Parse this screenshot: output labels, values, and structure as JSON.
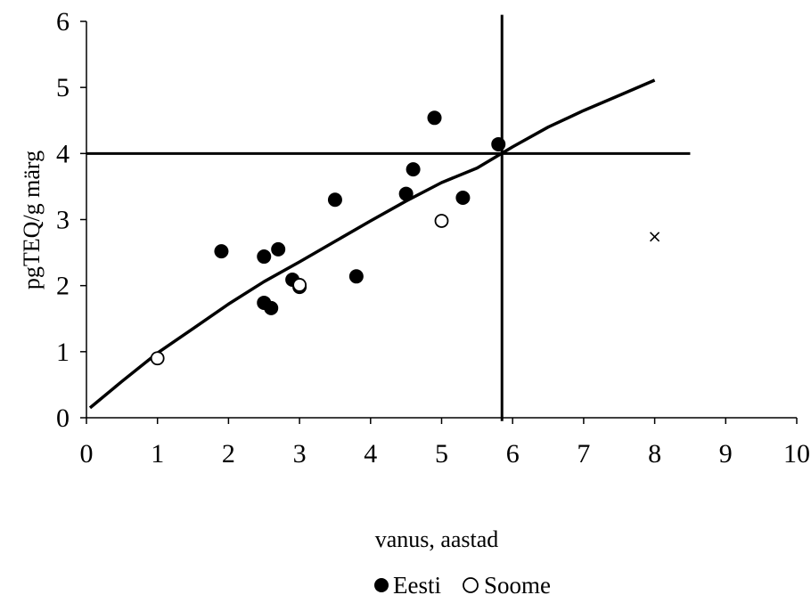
{
  "chart_data": {
    "type": "scatter",
    "xlabel": "vanus, aastad",
    "ylabel": "pgTEQ/g märg",
    "xlim": [
      0,
      10
    ],
    "ylim": [
      0,
      6
    ],
    "x_ticks": [
      "0",
      "1",
      "2",
      "3",
      "4",
      "5",
      "6",
      "7",
      "8",
      "9",
      "10"
    ],
    "y_ticks": [
      "0",
      "1",
      "2",
      "3",
      "4",
      "5",
      "6"
    ],
    "grid": false,
    "legend_position": "bottom",
    "series": [
      {
        "name": "Eesti",
        "marker": "filled-circle",
        "color": "#000000",
        "points": [
          [
            1.9,
            2.52
          ],
          [
            2.5,
            2.44
          ],
          [
            2.5,
            1.74
          ],
          [
            2.6,
            1.66
          ],
          [
            2.7,
            2.55
          ],
          [
            2.9,
            2.09
          ],
          [
            3.0,
            1.98
          ],
          [
            3.5,
            3.3
          ],
          [
            3.8,
            2.14
          ],
          [
            4.5,
            3.39
          ],
          [
            4.6,
            3.76
          ],
          [
            4.9,
            4.54
          ],
          [
            5.3,
            3.33
          ],
          [
            5.8,
            4.14
          ]
        ]
      },
      {
        "name": "Soome",
        "marker": "open-circle",
        "color": "#000000",
        "points": [
          [
            1.0,
            0.9
          ],
          [
            3.0,
            2.01
          ],
          [
            5.0,
            2.98
          ]
        ]
      },
      {
        "marker": "cross",
        "color": "#000000",
        "points": [
          [
            8.0,
            2.74
          ]
        ]
      }
    ],
    "trend_line": {
      "color": "#000000",
      "points": [
        [
          0.05,
          0.15
        ],
        [
          0.5,
          0.55
        ],
        [
          1.0,
          0.98
        ],
        [
          1.5,
          1.35
        ],
        [
          2.0,
          1.72
        ],
        [
          2.5,
          2.06
        ],
        [
          3.0,
          2.36
        ],
        [
          3.5,
          2.67
        ],
        [
          4.0,
          2.98
        ],
        [
          4.5,
          3.28
        ],
        [
          5.0,
          3.56
        ],
        [
          5.5,
          3.78
        ],
        [
          6.0,
          4.1
        ],
        [
          6.5,
          4.4
        ],
        [
          7.0,
          4.65
        ],
        [
          7.5,
          4.88
        ],
        [
          8.0,
          5.11
        ]
      ]
    },
    "reference_lines": [
      {
        "orientation": "horizontal",
        "value": 4.0,
        "from": 0,
        "to": 8.5
      },
      {
        "orientation": "vertical",
        "value": 5.85,
        "from": -0.05,
        "to": 6.1
      }
    ]
  }
}
